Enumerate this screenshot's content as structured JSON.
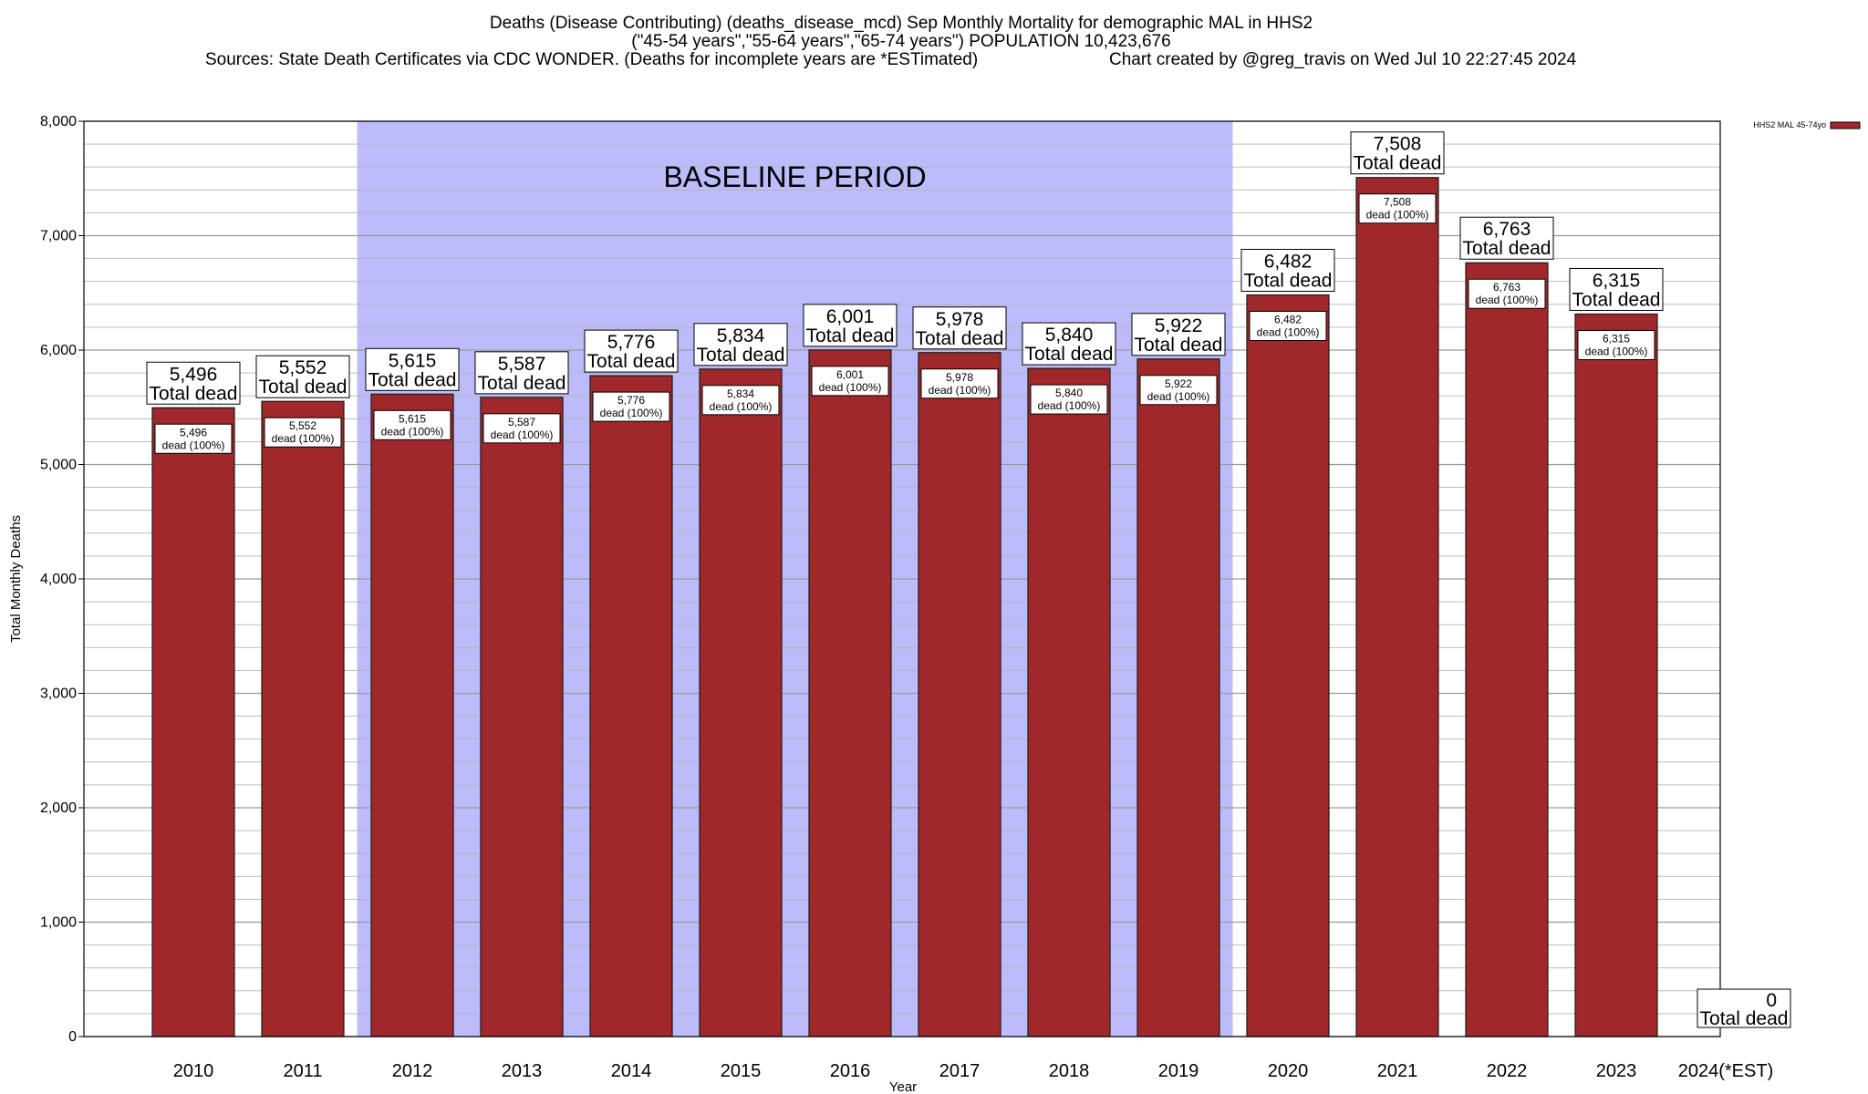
{
  "chart_data": {
    "type": "bar",
    "title_lines": [
      "Deaths (Disease Contributing) (deaths_disease_mcd) Sep Monthly Mortality for demographic MAL in HHS2",
      "(\"45-54 years\",\"55-64 years\",\"65-74 years\") POPULATION 10,423,676"
    ],
    "sources": "Sources: State Death Certificates via CDC WONDER. (Deaths for incomplete years are *ESTimated)",
    "credit": "Chart created by @greg_travis on Wed Jul 10 22:27:45 2024",
    "xlabel": "Year",
    "ylabel": "Total Monthly Deaths",
    "ylim": [
      0,
      8000
    ],
    "yticks": [
      0,
      1000,
      2000,
      3000,
      4000,
      5000,
      6000,
      7000,
      8000
    ],
    "ytick_labels": [
      "0",
      "1,000",
      "2,000",
      "3,000",
      "4,000",
      "5,000",
      "6,000",
      "7,000",
      "8,000"
    ],
    "grid": true,
    "categories": [
      "2010",
      "2011",
      "2012",
      "2013",
      "2014",
      "2015",
      "2016",
      "2017",
      "2018",
      "2019",
      "2020",
      "2021",
      "2022",
      "2023",
      "2024(*EST)"
    ],
    "series": [
      {
        "name": "HHS2 MAL 45-74yo",
        "color": "#a0282a",
        "values": [
          5496,
          5552,
          5615,
          5587,
          5776,
          5834,
          6001,
          5978,
          5840,
          5922,
          6482,
          7508,
          6763,
          6315,
          0
        ],
        "value_labels": [
          "5,496",
          "5,552",
          "5,615",
          "5,587",
          "5,776",
          "5,834",
          "6,001",
          "5,978",
          "5,840",
          "5,922",
          "6,482",
          "7,508",
          "6,763",
          "6,315",
          "0"
        ]
      }
    ],
    "total_label": "Total dead",
    "inner_label": "dead (100%)",
    "baseline": {
      "label": "BASELINE PERIOD",
      "start_category": "2012",
      "end_category": "2019",
      "color": "#bcbcfb"
    },
    "legend": {
      "placement": "top-right",
      "label": "HHS2 MAL 45-74yo"
    }
  }
}
